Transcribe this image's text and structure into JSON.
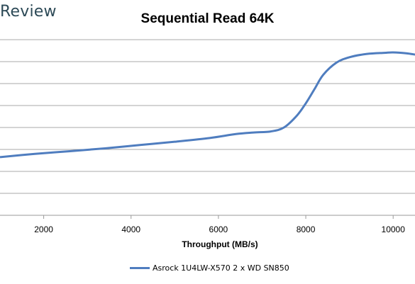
{
  "brand": "Review",
  "chart_data": {
    "type": "line",
    "title": "Sequential Read 64K",
    "xlabel": "Throughput (MB/s)",
    "ylabel": "",
    "xlim": [
      1000,
      10500
    ],
    "ylim": [
      0,
      8
    ],
    "xticks": [
      2000,
      4000,
      6000,
      8000,
      10000
    ],
    "grid": true,
    "legend_position": "bottom",
    "series": [
      {
        "name": "Asrock 1U4LW-X570 2 x WD SN850",
        "color": "#4f7dbf",
        "x": [
          1000,
          1800,
          2600,
          3400,
          4200,
          5000,
          5800,
          6400,
          6800,
          7200,
          7500,
          7800,
          8000,
          8200,
          8400,
          8700,
          9000,
          9400,
          9800,
          10000,
          10300,
          10500
        ],
        "y": [
          2.65,
          2.8,
          2.92,
          3.05,
          3.2,
          3.35,
          3.52,
          3.7,
          3.77,
          3.82,
          4.0,
          4.55,
          5.1,
          5.75,
          6.4,
          6.95,
          7.2,
          7.35,
          7.4,
          7.42,
          7.38,
          7.32
        ]
      }
    ]
  }
}
